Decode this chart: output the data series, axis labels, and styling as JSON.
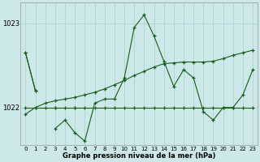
{
  "xlabel_label": "Graphe pression niveau de la mer (hPa)",
  "bg_color": "#cce8e8",
  "line_color": "#1a5c1a",
  "grid_color": "#aacfcf",
  "hours": [
    0,
    1,
    2,
    3,
    4,
    5,
    6,
    7,
    8,
    9,
    10,
    11,
    12,
    13,
    14,
    15,
    16,
    17,
    18,
    19,
    20,
    21,
    22,
    23
  ],
  "line_volatile": [
    1022.65,
    1022.2,
    null,
    1021.75,
    1021.85,
    1021.7,
    1021.6,
    1022.05,
    1022.1,
    1022.1,
    1022.35,
    1022.95,
    1023.1,
    1022.85,
    1022.55,
    1022.25,
    1022.45,
    1022.35,
    1021.95,
    1021.85,
    1022.0,
    1022.0,
    1022.15,
    1022.45
  ],
  "line_short": [
    1022.65,
    1022.2,
    null,
    1022.0,
    null,
    1022.0,
    null,
    null,
    null,
    null,
    null,
    null,
    null,
    null,
    null,
    null,
    null,
    null,
    null,
    null,
    null,
    null,
    null,
    null
  ],
  "line_rising": [
    1021.92,
    1022.0,
    1022.05,
    1022.08,
    1022.1,
    1022.12,
    1022.15,
    1022.18,
    1022.22,
    1022.27,
    1022.32,
    1022.38,
    1022.43,
    1022.48,
    1022.52,
    1022.53,
    1022.54,
    1022.54,
    1022.54,
    1022.55,
    1022.58,
    1022.62,
    1022.65,
    1022.68
  ],
  "line_flat": [
    1022.0,
    1022.0,
    1022.0,
    1022.0,
    1022.0,
    1022.0,
    1022.0,
    1022.0,
    1022.0,
    1022.0,
    1022.0,
    1022.0,
    1022.0,
    1022.0,
    1022.0,
    1022.0,
    1022.0,
    1022.0,
    1022.0,
    1022.0,
    1022.0,
    1022.0,
    1022.0,
    1022.0
  ],
  "ylim": [
    1021.55,
    1023.25
  ],
  "yticks": [
    1022,
    1023
  ],
  "xticks": [
    0,
    1,
    2,
    3,
    4,
    5,
    6,
    7,
    8,
    9,
    10,
    11,
    12,
    13,
    14,
    15,
    16,
    17,
    18,
    19,
    20,
    21,
    22,
    23
  ]
}
